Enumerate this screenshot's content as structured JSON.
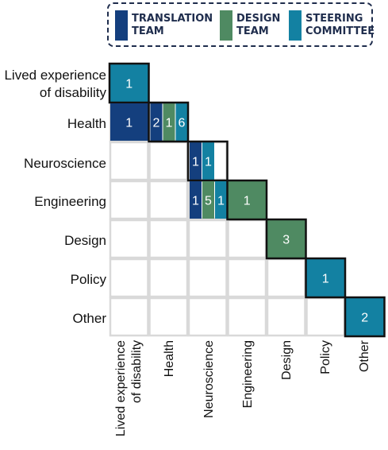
{
  "legend": [
    {
      "label": "TRANSLATION\nTEAM",
      "color": "#143f7e"
    },
    {
      "label": "DESIGN\nTEAM",
      "color": "#4f8a62"
    },
    {
      "label": "STEERING\nCOMMITTEE",
      "color": "#1381a2"
    }
  ],
  "chart_data": {
    "type": "heatmap",
    "rows": [
      "Lived experience\nof disability",
      "Health",
      "Neuroscience",
      "Engineering",
      "Design",
      "Policy",
      "Other"
    ],
    "columns": [
      "Lived experience\nof disability",
      "Health",
      "Neuroscience",
      "Engineering",
      "Design",
      "Policy",
      "Other"
    ],
    "series_names": [
      "TRANSLATION TEAM",
      "DESIGN TEAM",
      "STEERING COMMITTEE"
    ],
    "cells": [
      {
        "row": 0,
        "col": 0,
        "segments": [
          {
            "team": 2,
            "value": 1
          }
        ],
        "outline": true
      },
      {
        "row": 1,
        "col": 0,
        "segments": [
          {
            "team": 0,
            "value": 1
          }
        ]
      },
      {
        "row": 1,
        "col": 1,
        "segments": [
          {
            "team": 0,
            "value": 2
          },
          {
            "team": 1,
            "value": 1
          },
          {
            "team": 2,
            "value": 6
          }
        ],
        "outline": true
      },
      {
        "row": 2,
        "col": 2,
        "segments": [
          {
            "team": 0,
            "value": 1
          },
          {
            "team": 2,
            "value": 1
          }
        ],
        "outline": true
      },
      {
        "row": 3,
        "col": 2,
        "segments": [
          {
            "team": 0,
            "value": 1
          },
          {
            "team": 1,
            "value": 5
          },
          {
            "team": 2,
            "value": 1
          }
        ]
      },
      {
        "row": 3,
        "col": 3,
        "segments": [
          {
            "team": 1,
            "value": 1
          }
        ],
        "outline": true
      },
      {
        "row": 4,
        "col": 4,
        "segments": [
          {
            "team": 1,
            "value": 3
          }
        ],
        "outline": true
      },
      {
        "row": 5,
        "col": 5,
        "segments": [
          {
            "team": 2,
            "value": 1
          }
        ],
        "outline": true
      },
      {
        "row": 6,
        "col": 6,
        "segments": [
          {
            "team": 2,
            "value": 2
          }
        ],
        "outline": true
      }
    ],
    "grid": true
  }
}
